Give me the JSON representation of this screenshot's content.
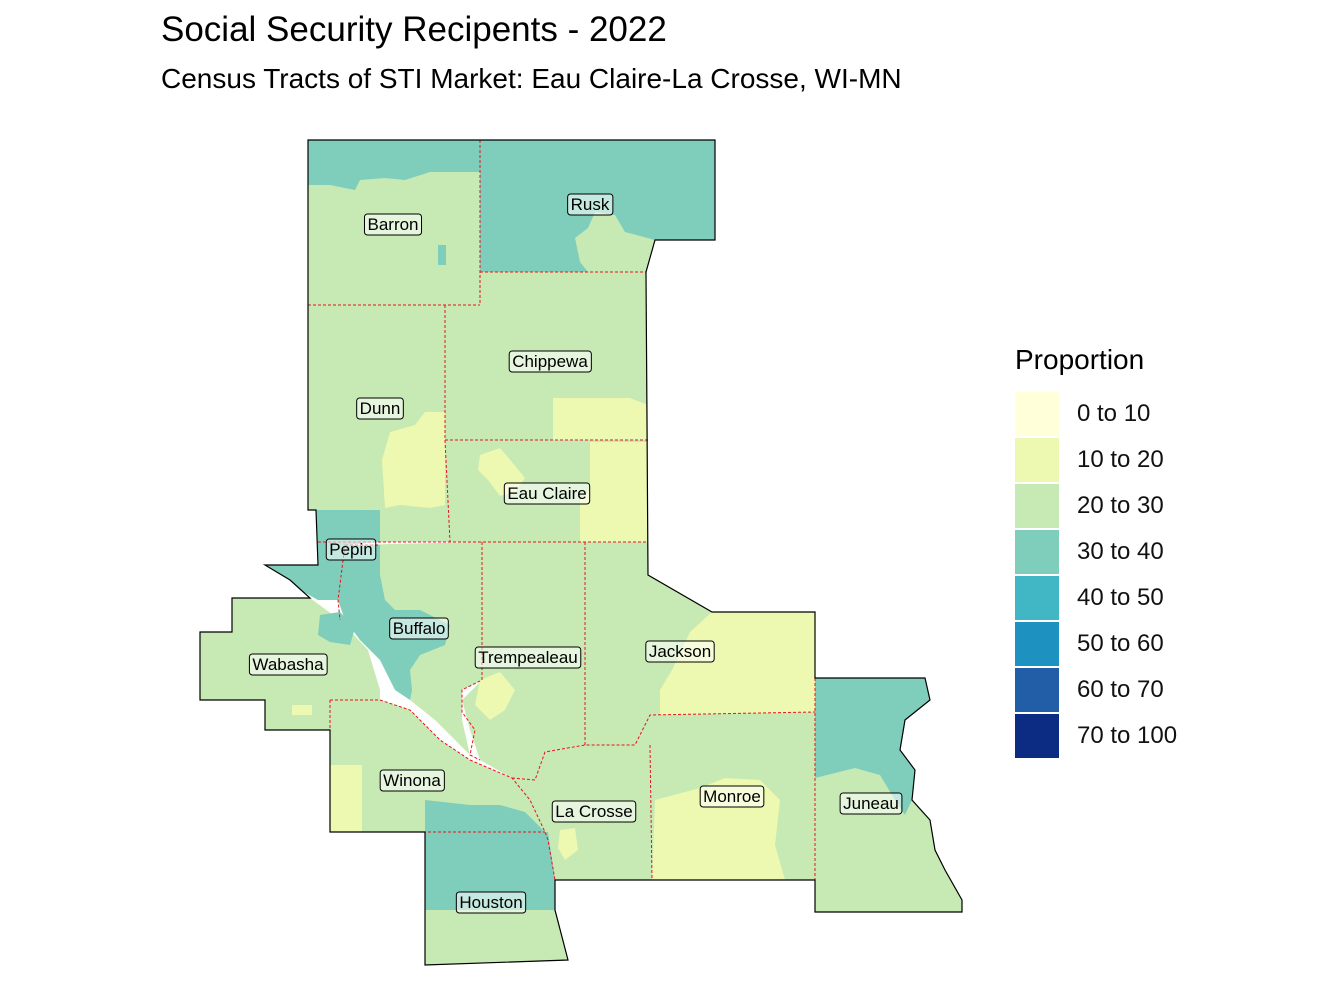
{
  "title": "Social Security Recipents - 2022",
  "subtitle": "Census Tracts of STI Market: Eau Claire-La Crosse, WI-MN",
  "legend": {
    "title": "Proportion",
    "items": [
      {
        "label": "0 to 10",
        "color": "#FFFFD9"
      },
      {
        "label": "10 to 20",
        "color": "#EDF8B1"
      },
      {
        "label": "20 to 30",
        "color": "#C7E9B4"
      },
      {
        "label": "30 to 40",
        "color": "#7FCDBB"
      },
      {
        "label": "40 to 50",
        "color": "#41B6C4"
      },
      {
        "label": "50 to 60",
        "color": "#1D91C0"
      },
      {
        "label": "60 to 70",
        "color": "#225EA8"
      },
      {
        "label": "70 to 100",
        "color": "#0C2C84"
      }
    ]
  },
  "counties": [
    {
      "name": "Barron",
      "proportion_class": "20 to 30"
    },
    {
      "name": "Rusk",
      "proportion_class": "30 to 40"
    },
    {
      "name": "Chippewa",
      "proportion_class": "20 to 30"
    },
    {
      "name": "Dunn",
      "proportion_class": "20 to 30"
    },
    {
      "name": "Eau Claire",
      "proportion_class": "20 to 30"
    },
    {
      "name": "Pepin",
      "proportion_class": "30 to 40"
    },
    {
      "name": "Buffalo",
      "proportion_class": "30 to 40"
    },
    {
      "name": "Wabasha",
      "proportion_class": "20 to 30"
    },
    {
      "name": "Trempealeau",
      "proportion_class": "20 to 30"
    },
    {
      "name": "Jackson",
      "proportion_class": "20 to 30"
    },
    {
      "name": "Winona",
      "proportion_class": "20 to 30"
    },
    {
      "name": "La Crosse",
      "proportion_class": "20 to 30"
    },
    {
      "name": "Monroe",
      "proportion_class": "20 to 30"
    },
    {
      "name": "Juneau",
      "proportion_class": "30 to 40"
    },
    {
      "name": "Houston",
      "proportion_class": "30 to 40"
    }
  ]
}
